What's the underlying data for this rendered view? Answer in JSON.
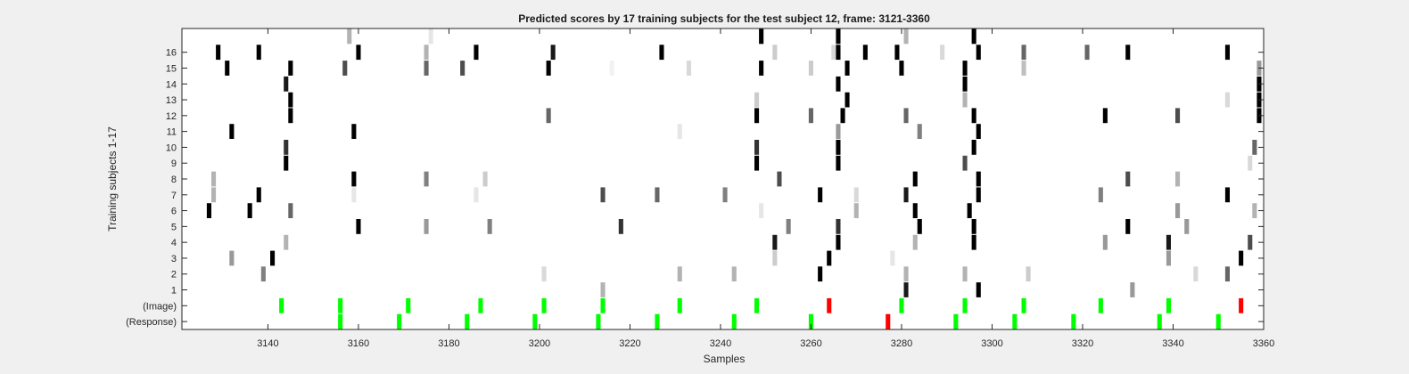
{
  "chart_data": {
    "type": "heatmap",
    "title": "Predicted scores by 17 training subjects for the test subject 12, frame: 3121-3360",
    "xlabel": "Samples",
    "ylabel": "Training subjects 1-17",
    "xlim": [
      3121,
      3360
    ],
    "ylim": [
      -1.5,
      17.5
    ],
    "x_ticks": [
      "3140",
      "3160",
      "3180",
      "3200",
      "3220",
      "3240",
      "3260",
      "3280",
      "3300",
      "3320",
      "3340",
      "3360"
    ],
    "y_ticks": [
      "(Response)",
      "(Image)",
      "1",
      "2",
      "3",
      "4",
      "5",
      "6",
      "7",
      "8",
      "9",
      "10",
      "11",
      "12",
      "13",
      "14",
      "15",
      "16"
    ],
    "grid": false,
    "colors": {
      "background": "#f0f0f0",
      "axes": "#ffffff",
      "correct": "#00ff00",
      "incorrect": "#ff0000",
      "max_score": "#000000"
    },
    "image_events": [
      {
        "x": 3143,
        "status": "correct"
      },
      {
        "x": 3156,
        "status": "correct"
      },
      {
        "x": 3171,
        "status": "correct"
      },
      {
        "x": 3187,
        "status": "correct"
      },
      {
        "x": 3201,
        "status": "correct"
      },
      {
        "x": 3214,
        "status": "correct"
      },
      {
        "x": 3231,
        "status": "correct"
      },
      {
        "x": 3248,
        "status": "correct"
      },
      {
        "x": 3264,
        "status": "incorrect"
      },
      {
        "x": 3280,
        "status": "correct"
      },
      {
        "x": 3294,
        "status": "correct"
      },
      {
        "x": 3307,
        "status": "correct"
      },
      {
        "x": 3324,
        "status": "correct"
      },
      {
        "x": 3339,
        "status": "correct"
      },
      {
        "x": 3355,
        "status": "incorrect"
      }
    ],
    "response_events": [
      {
        "x": 3156,
        "status": "correct"
      },
      {
        "x": 3169,
        "status": "correct"
      },
      {
        "x": 3184,
        "status": "correct"
      },
      {
        "x": 3199,
        "status": "correct"
      },
      {
        "x": 3213,
        "status": "correct"
      },
      {
        "x": 3226,
        "status": "correct"
      },
      {
        "x": 3243,
        "status": "correct"
      },
      {
        "x": 3260,
        "status": "correct"
      },
      {
        "x": 3277,
        "status": "incorrect"
      },
      {
        "x": 3292,
        "status": "correct"
      },
      {
        "x": 3305,
        "status": "correct"
      },
      {
        "x": 3318,
        "status": "correct"
      },
      {
        "x": 3337,
        "status": "correct"
      },
      {
        "x": 3350,
        "status": "correct"
      }
    ],
    "score_rows": [
      {
        "subject": 1,
        "marks": [
          [
            3214,
            0.3
          ],
          [
            3281,
            0.9
          ],
          [
            3297,
            1.0
          ],
          [
            3331,
            0.4
          ]
        ]
      },
      {
        "subject": 2,
        "marks": [
          [
            3139,
            0.5
          ],
          [
            3201,
            0.15
          ],
          [
            3231,
            0.3
          ],
          [
            3243,
            0.3
          ],
          [
            3262,
            1.0
          ],
          [
            3281,
            0.3
          ],
          [
            3294,
            0.3
          ],
          [
            3308,
            0.2
          ],
          [
            3345,
            0.15
          ],
          [
            3352,
            0.6
          ]
        ]
      },
      {
        "subject": 3,
        "marks": [
          [
            3132,
            0.4
          ],
          [
            3141,
            1.0
          ],
          [
            3252,
            0.2
          ],
          [
            3264,
            1.0
          ],
          [
            3278,
            0.1
          ],
          [
            3339,
            0.4
          ],
          [
            3355,
            1.0
          ]
        ]
      },
      {
        "subject": 4,
        "marks": [
          [
            3144,
            0.3
          ],
          [
            3252,
            0.9
          ],
          [
            3266,
            1.0
          ],
          [
            3283,
            0.3
          ],
          [
            3296,
            1.0
          ],
          [
            3325,
            0.4
          ],
          [
            3339,
            0.9
          ],
          [
            3357,
            0.7
          ]
        ]
      },
      {
        "subject": 5,
        "marks": [
          [
            3160,
            1.0
          ],
          [
            3175,
            0.4
          ],
          [
            3189,
            0.5
          ],
          [
            3218,
            0.8
          ],
          [
            3255,
            0.5
          ],
          [
            3266,
            0.8
          ],
          [
            3284,
            1.0
          ],
          [
            3296,
            1.0
          ],
          [
            3330,
            1.0
          ],
          [
            3343,
            0.4
          ]
        ]
      },
      {
        "subject": 6,
        "marks": [
          [
            3127,
            1.0
          ],
          [
            3136,
            1.0
          ],
          [
            3145,
            0.6
          ],
          [
            3249,
            0.1
          ],
          [
            3270,
            0.3
          ],
          [
            3283,
            1.0
          ],
          [
            3295,
            1.0
          ],
          [
            3341,
            0.4
          ],
          [
            3358,
            0.3
          ]
        ]
      },
      {
        "subject": 7,
        "marks": [
          [
            3128,
            0.3
          ],
          [
            3138,
            1.0
          ],
          [
            3159,
            0.1
          ],
          [
            3186,
            0.1
          ],
          [
            3214,
            0.7
          ],
          [
            3226,
            0.6
          ],
          [
            3241,
            0.5
          ],
          [
            3262,
            1.0
          ],
          [
            3270,
            0.15
          ],
          [
            3281,
            0.9
          ],
          [
            3297,
            1.0
          ],
          [
            3324,
            0.5
          ],
          [
            3352,
            1.0
          ]
        ]
      },
      {
        "subject": 8,
        "marks": [
          [
            3128,
            0.3
          ],
          [
            3159,
            1.0
          ],
          [
            3175,
            0.5
          ],
          [
            3188,
            0.2
          ],
          [
            3253,
            0.7
          ],
          [
            3283,
            1.0
          ],
          [
            3297,
            1.0
          ],
          [
            3330,
            0.7
          ],
          [
            3341,
            0.3
          ]
        ]
      },
      {
        "subject": 9,
        "marks": [
          [
            3144,
            1.0
          ],
          [
            3248,
            1.0
          ],
          [
            3266,
            1.0
          ],
          [
            3294,
            0.7
          ],
          [
            3357,
            0.15
          ]
        ]
      },
      {
        "subject": 10,
        "marks": [
          [
            3144,
            0.8
          ],
          [
            3248,
            0.8
          ],
          [
            3266,
            1.0
          ],
          [
            3296,
            1.0
          ],
          [
            3358,
            0.6
          ]
        ]
      },
      {
        "subject": 11,
        "marks": [
          [
            3132,
            1.0
          ],
          [
            3159,
            1.0
          ],
          [
            3231,
            0.1
          ],
          [
            3266,
            0.4
          ],
          [
            3284,
            0.5
          ],
          [
            3297,
            1.0
          ]
        ]
      },
      {
        "subject": 12,
        "marks": [
          [
            3145,
            1.0
          ],
          [
            3202,
            0.6
          ],
          [
            3248,
            1.0
          ],
          [
            3260,
            0.6
          ],
          [
            3267,
            1.0
          ],
          [
            3281,
            0.6
          ],
          [
            3296,
            1.0
          ],
          [
            3325,
            1.0
          ],
          [
            3341,
            0.7
          ],
          [
            3359,
            1.0
          ]
        ]
      },
      {
        "subject": 13,
        "marks": [
          [
            3145,
            1.0
          ],
          [
            3248,
            0.2
          ],
          [
            3268,
            1.0
          ],
          [
            3294,
            0.3
          ],
          [
            3352,
            0.15
          ],
          [
            3359,
            1.0
          ]
        ]
      },
      {
        "subject": 14,
        "marks": [
          [
            3144,
            0.9
          ],
          [
            3266,
            1.0
          ],
          [
            3294,
            1.0
          ],
          [
            3359,
            1.0
          ]
        ]
      },
      {
        "subject": 15,
        "marks": [
          [
            3131,
            1.0
          ],
          [
            3145,
            1.0
          ],
          [
            3157,
            0.7
          ],
          [
            3175,
            0.6
          ],
          [
            3183,
            0.7
          ],
          [
            3202,
            1.0
          ],
          [
            3216,
            0.05
          ],
          [
            3233,
            0.15
          ],
          [
            3249,
            1.0
          ],
          [
            3260,
            0.2
          ],
          [
            3268,
            1.0
          ],
          [
            3280,
            1.0
          ],
          [
            3294,
            1.0
          ],
          [
            3307,
            0.25
          ],
          [
            3359,
            0.4
          ]
        ]
      },
      {
        "subject": 16,
        "marks": [
          [
            3129,
            1.0
          ],
          [
            3138,
            1.0
          ],
          [
            3160,
            1.0
          ],
          [
            3175,
            0.3
          ],
          [
            3186,
            1.0
          ],
          [
            3203,
            0.9
          ],
          [
            3227,
            1.0
          ],
          [
            3252,
            0.2
          ],
          [
            3265,
            0.15
          ],
          [
            3266,
            1.0
          ],
          [
            3272,
            1.0
          ],
          [
            3279,
            1.0
          ],
          [
            3289,
            0.15
          ],
          [
            3297,
            1.0
          ],
          [
            3307,
            0.6
          ],
          [
            3321,
            0.6
          ],
          [
            3330,
            1.0
          ],
          [
            3352,
            1.0
          ]
        ]
      },
      {
        "subject": 17,
        "marks": [
          [
            3158,
            0.3
          ],
          [
            3176,
            0.1
          ],
          [
            3249,
            1.0
          ],
          [
            3266,
            1.0
          ],
          [
            3281,
            0.3
          ],
          [
            3296,
            1.0
          ]
        ]
      }
    ]
  }
}
